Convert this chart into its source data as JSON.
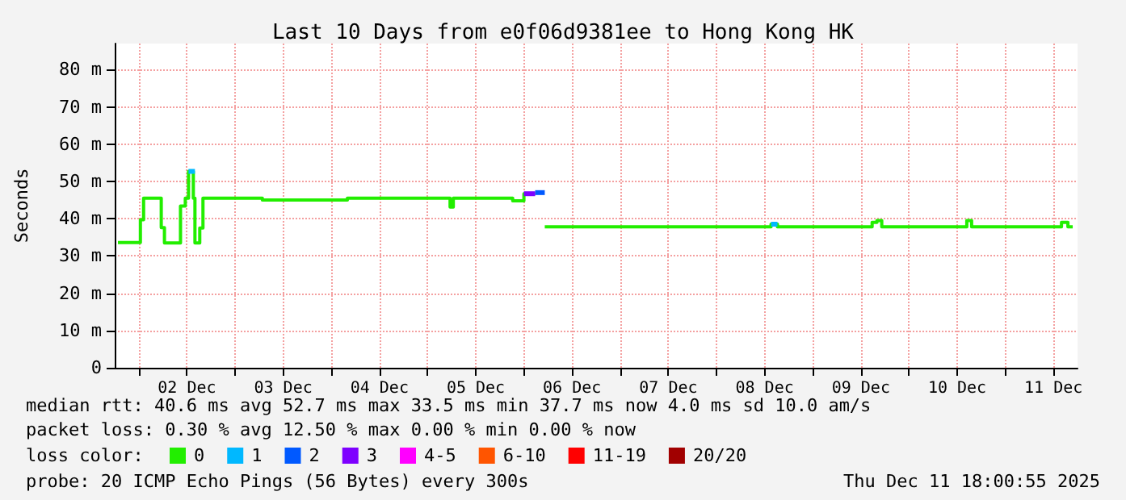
{
  "chart_data": {
    "type": "step",
    "title": "Last 10 Days from e0f06d9381ee to Hong Kong HK",
    "ylabel": "Seconds",
    "legend_title": "loss color:",
    "x": [
      "2025-12-01T18:48",
      "2025-12-02T00:24",
      "2025-12-02T01:12",
      "2025-12-02T05:36",
      "2025-12-02T06:24",
      "2025-12-02T10:24",
      "2025-12-02T11:36",
      "2025-12-02T12:24",
      "2025-12-02T13:36",
      "2025-12-02T14:00",
      "2025-12-02T15:12",
      "2025-12-02T16:00",
      "2025-12-03T06:48",
      "2025-12-04T04:00",
      "2025-12-05T05:36",
      "2025-12-05T06:24",
      "2025-12-05T21:12",
      "2025-12-06T00:00",
      "2025-12-06T02:48",
      "2025-12-06T05:12",
      "2025-12-08T13:36",
      "2025-12-08T15:12",
      "2025-12-09T14:48",
      "2025-12-09T16:00",
      "2025-12-09T17:12",
      "2025-12-10T14:24",
      "2025-12-10T15:36",
      "2025-12-11T14:00",
      "2025-12-11T15:36",
      "2025-12-11T16:48"
    ],
    "series": [
      {
        "name": "0",
        "color": "#22ee00",
        "values": [
          33.6,
          39.7,
          45.5,
          37.6,
          33.5,
          43.4,
          45.5,
          52.7,
          45.5,
          33.5,
          37.5,
          45.5,
          45.0,
          45.5,
          43.1,
          45.5,
          44.8,
          46.7,
          null,
          37.8,
          38.5,
          37.8,
          39.0,
          39.5,
          37.8,
          39.5,
          37.8,
          39.0,
          37.8,
          37.8
        ]
      },
      {
        "name": "1",
        "color": "#00b8ff",
        "x": [
          "2025-12-02T12:24",
          "2025-12-02T13:36",
          "2025-12-02T14:00",
          "2025-12-08T13:36",
          "2025-12-08T15:12"
        ],
        "values": [
          52.7,
          52.7,
          null,
          38.5,
          38.5
        ]
      },
      {
        "name": "2",
        "color": "#0059ff",
        "x": [
          "2025-12-06T02:48",
          "2025-12-06T05:12"
        ],
        "values": [
          47.0,
          47.0
        ]
      },
      {
        "name": "3",
        "color": "#7e00ff",
        "x": [
          "2025-12-06T00:00",
          "2025-12-06T02:48"
        ],
        "values": [
          46.7,
          46.7
        ]
      },
      {
        "name": "4-5",
        "color": "#ff00ff",
        "values": [
          null,
          null,
          null,
          null,
          null,
          null,
          null,
          null,
          null,
          null,
          null,
          null,
          null,
          null,
          null,
          null,
          null,
          null,
          null,
          null,
          null,
          null,
          null,
          null,
          null,
          null,
          null,
          null,
          null,
          null
        ]
      },
      {
        "name": "6-10",
        "color": "#ff5500",
        "values": [
          null,
          null,
          null,
          null,
          null,
          null,
          null,
          null,
          null,
          null,
          null,
          null,
          null,
          null,
          null,
          null,
          null,
          null,
          null,
          null,
          null,
          null,
          null,
          null,
          null,
          null,
          null,
          null,
          null,
          null
        ]
      },
      {
        "name": "11-19",
        "color": "#ff0000",
        "values": [
          null,
          null,
          null,
          null,
          null,
          null,
          null,
          null,
          null,
          null,
          null,
          null,
          null,
          null,
          null,
          null,
          null,
          null,
          null,
          null,
          null,
          null,
          null,
          null,
          null,
          null,
          null,
          null,
          null,
          null
        ]
      },
      {
        "name": "20/20",
        "color": "#a10000",
        "values": [
          null,
          null,
          null,
          null,
          null,
          null,
          null,
          null,
          null,
          null,
          null,
          null,
          null,
          null,
          null,
          null,
          null,
          null,
          null,
          null,
          null,
          null,
          null,
          null,
          null,
          null,
          null,
          null,
          null,
          null
        ]
      }
    ],
    "xlim": [
      "2025-12-01T18:00",
      "2025-12-11T18:00"
    ],
    "xticks": [
      {
        "value": "2025-12-02T00:00",
        "label": null
      },
      {
        "value": "2025-12-02T12:00",
        "label": "02 Dec"
      },
      {
        "value": "2025-12-03T00:00",
        "label": null
      },
      {
        "value": "2025-12-03T12:00",
        "label": "03 Dec"
      },
      {
        "value": "2025-12-04T00:00",
        "label": null
      },
      {
        "value": "2025-12-04T12:00",
        "label": "04 Dec"
      },
      {
        "value": "2025-12-05T00:00",
        "label": null
      },
      {
        "value": "2025-12-05T12:00",
        "label": "05 Dec"
      },
      {
        "value": "2025-12-06T00:00",
        "label": null
      },
      {
        "value": "2025-12-06T12:00",
        "label": "06 Dec"
      },
      {
        "value": "2025-12-07T00:00",
        "label": null
      },
      {
        "value": "2025-12-07T12:00",
        "label": "07 Dec"
      },
      {
        "value": "2025-12-08T00:00",
        "label": null
      },
      {
        "value": "2025-12-08T12:00",
        "label": "08 Dec"
      },
      {
        "value": "2025-12-09T00:00",
        "label": null
      },
      {
        "value": "2025-12-09T12:00",
        "label": "09 Dec"
      },
      {
        "value": "2025-12-10T00:00",
        "label": null
      },
      {
        "value": "2025-12-10T12:00",
        "label": "10 Dec"
      },
      {
        "value": "2025-12-11T00:00",
        "label": null
      },
      {
        "value": "2025-12-11T12:00",
        "label": "11 Dec"
      }
    ],
    "ylim": [
      0,
      87
    ],
    "yticks": [
      0,
      {
        "value": 10,
        "label": "10 m"
      },
      {
        "value": 20,
        "label": "20 m"
      },
      {
        "value": 30,
        "label": "30 m"
      },
      {
        "value": 40,
        "label": "40 m"
      },
      {
        "value": 50,
        "label": "50 m"
      },
      {
        "value": 60,
        "label": "60 m"
      },
      {
        "value": 70,
        "label": "70 m"
      },
      {
        "value": 80,
        "label": "80 m"
      }
    ],
    "grid": true,
    "legend": "bottom",
    "line_style": "solid",
    "marker": "none",
    "annotations": [
      "median rtt: 40.6 ms avg 52.7 ms max 33.5 ms min 37.7 ms now 4.0 ms sd 10.0 am/s",
      "packet loss: 0.30 % avg 12.50 % max 0.00 % min 0.00 % now",
      "probe: 20 ICMP Echo Pings (56 Bytes) every 300s",
      "Thu Dec 11 18:00:55 2025"
    ]
  }
}
